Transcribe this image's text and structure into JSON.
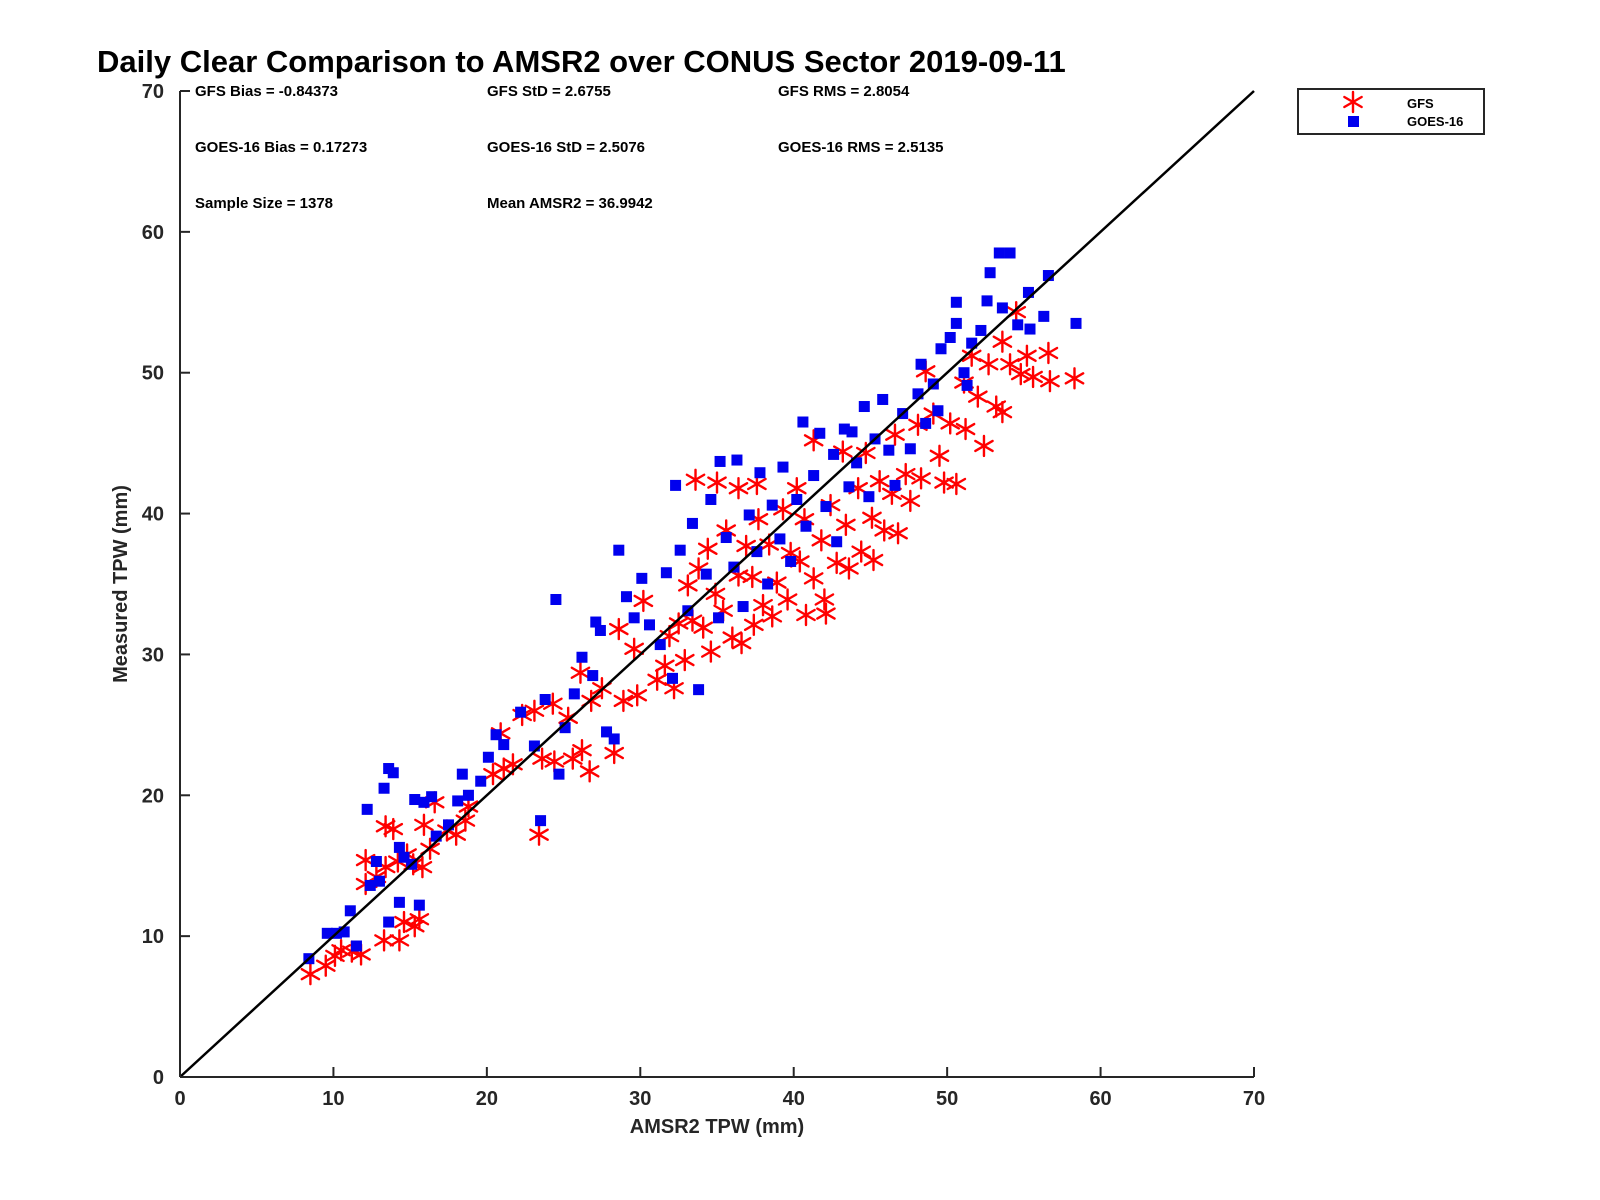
{
  "chart_data": {
    "type": "scatter",
    "title": "Daily Clear Comparison to AMSR2 over CONUS Sector 2019-09-11",
    "xlabel": "AMSR2 TPW (mm)",
    "ylabel": "Measured TPW (mm)",
    "xlim": [
      0,
      70
    ],
    "ylim": [
      0,
      70
    ],
    "xticks": [
      "0",
      "10",
      "20",
      "30",
      "40",
      "50",
      "60",
      "70"
    ],
    "yticks": [
      "0",
      "10",
      "20",
      "30",
      "40",
      "50",
      "60",
      "70"
    ],
    "grid": false,
    "legend_position": "outside-top-right",
    "reference_line": {
      "x": [
        0,
        70
      ],
      "y": [
        0,
        70
      ],
      "color": "#000000"
    },
    "stats": [
      "GFS Bias = -0.84373",
      "GFS StD = 2.6755",
      "GFS RMS = 2.8054",
      "GOES-16 Bias = 0.17273",
      "GOES-16 StD = 2.5076",
      "GOES-16 RMS = 2.5135",
      "Sample Size = 1378",
      "Mean AMSR2 = 36.9942"
    ],
    "series": [
      {
        "name": "GFS",
        "marker": "asterisk",
        "color": "#ff0000",
        "points": [
          [
            8.5,
            7.3
          ],
          [
            9.5,
            7.9
          ],
          [
            10.1,
            8.6
          ],
          [
            10.5,
            9.0
          ],
          [
            11.2,
            8.9
          ],
          [
            11.8,
            8.7
          ],
          [
            13.3,
            9.7
          ],
          [
            14.3,
            9.7
          ],
          [
            14.6,
            11.0
          ],
          [
            15.3,
            10.7
          ],
          [
            15.6,
            11.2
          ],
          [
            12.1,
            13.7
          ],
          [
            12.1,
            15.4
          ],
          [
            12.8,
            14.2
          ],
          [
            13.4,
            14.9
          ],
          [
            13.4,
            17.8
          ],
          [
            13.9,
            17.6
          ],
          [
            14.2,
            15.3
          ],
          [
            14.8,
            15.8
          ],
          [
            15.2,
            15.1
          ],
          [
            15.8,
            14.9
          ],
          [
            15.9,
            17.9
          ],
          [
            16.3,
            16.2
          ],
          [
            16.6,
            19.5
          ],
          [
            17.4,
            17.5
          ],
          [
            18.0,
            17.2
          ],
          [
            18.6,
            18.2
          ],
          [
            18.8,
            19.2
          ],
          [
            20.4,
            21.5
          ],
          [
            20.9,
            24.4
          ],
          [
            21.1,
            21.9
          ],
          [
            21.7,
            22.2
          ],
          [
            22.3,
            25.7
          ],
          [
            23.1,
            26.0
          ],
          [
            23.4,
            17.2
          ],
          [
            23.6,
            22.6
          ],
          [
            24.3,
            26.5
          ],
          [
            24.4,
            22.4
          ],
          [
            25.3,
            25.5
          ],
          [
            25.6,
            22.6
          ],
          [
            26.2,
            23.2
          ],
          [
            26.7,
            21.7
          ],
          [
            26.8,
            26.7
          ],
          [
            26.1,
            28.7
          ],
          [
            27.5,
            27.6
          ],
          [
            28.3,
            23.0
          ],
          [
            28.6,
            31.8
          ],
          [
            28.9,
            26.7
          ],
          [
            29.8,
            27.1
          ],
          [
            29.6,
            30.4
          ],
          [
            30.2,
            33.8
          ],
          [
            31.1,
            28.2
          ],
          [
            31.6,
            29.2
          ],
          [
            31.9,
            31.3
          ],
          [
            32.2,
            27.6
          ],
          [
            32.5,
            32.2
          ],
          [
            32.9,
            29.6
          ],
          [
            33.1,
            34.9
          ],
          [
            33.4,
            32.4
          ],
          [
            33.8,
            36.1
          ],
          [
            33.6,
            42.4
          ],
          [
            34.1,
            31.9
          ],
          [
            34.6,
            30.2
          ],
          [
            34.4,
            37.5
          ],
          [
            34.9,
            34.3
          ],
          [
            35.0,
            42.2
          ],
          [
            35.4,
            33.1
          ],
          [
            35.6,
            38.8
          ],
          [
            36.0,
            31.2
          ],
          [
            36.4,
            35.6
          ],
          [
            36.4,
            41.8
          ],
          [
            36.6,
            30.8
          ],
          [
            36.9,
            37.7
          ],
          [
            37.4,
            32.1
          ],
          [
            37.3,
            35.5
          ],
          [
            37.7,
            39.6
          ],
          [
            37.6,
            42.1
          ],
          [
            38.0,
            33.5
          ],
          [
            38.4,
            37.8
          ],
          [
            38.6,
            32.7
          ],
          [
            38.9,
            35.1
          ],
          [
            39.3,
            40.3
          ],
          [
            39.6,
            33.9
          ],
          [
            39.8,
            37.2
          ],
          [
            40.2,
            41.8
          ],
          [
            40.4,
            36.6
          ],
          [
            40.8,
            32.8
          ],
          [
            40.7,
            39.6
          ],
          [
            41.3,
            35.4
          ],
          [
            41.3,
            45.2
          ],
          [
            41.8,
            38.1
          ],
          [
            42.0,
            33.9
          ],
          [
            42.1,
            32.9
          ],
          [
            42.4,
            40.6
          ],
          [
            42.8,
            36.5
          ],
          [
            43.2,
            44.4
          ],
          [
            43.4,
            39.2
          ],
          [
            43.6,
            36.1
          ],
          [
            44.2,
            41.8
          ],
          [
            44.4,
            37.3
          ],
          [
            44.7,
            44.3
          ],
          [
            45.1,
            39.7
          ],
          [
            45.2,
            36.7
          ],
          [
            45.6,
            42.3
          ],
          [
            45.9,
            38.8
          ],
          [
            46.4,
            41.4
          ],
          [
            46.6,
            45.6
          ],
          [
            46.8,
            38.6
          ],
          [
            47.3,
            42.8
          ],
          [
            47.6,
            40.9
          ],
          [
            48.1,
            46.3
          ],
          [
            48.3,
            42.5
          ],
          [
            48.6,
            50.1
          ],
          [
            49.1,
            47.1
          ],
          [
            49.5,
            44.1
          ],
          [
            49.8,
            42.2
          ],
          [
            50.2,
            46.4
          ],
          [
            50.6,
            42.1
          ],
          [
            51.1,
            49.3
          ],
          [
            51.2,
            46.0
          ],
          [
            51.6,
            51.2
          ],
          [
            52.0,
            48.3
          ],
          [
            52.4,
            44.8
          ],
          [
            52.7,
            50.6
          ],
          [
            53.2,
            47.6
          ],
          [
            53.6,
            52.2
          ],
          [
            54.1,
            50.6
          ],
          [
            54.5,
            54.3
          ],
          [
            55.2,
            51.2
          ],
          [
            55.6,
            49.7
          ],
          [
            56.6,
            51.4
          ],
          [
            56.7,
            49.4
          ],
          [
            58.3,
            49.6
          ],
          [
            54.8,
            49.9
          ],
          [
            53.6,
            47.2
          ]
        ]
      },
      {
        "name": "GOES-16",
        "marker": "square",
        "color": "#0000ee",
        "points": [
          [
            8.4,
            8.4
          ],
          [
            9.6,
            10.2
          ],
          [
            10.2,
            10.2
          ],
          [
            10.7,
            10.3
          ],
          [
            11.1,
            11.8
          ],
          [
            11.5,
            9.3
          ],
          [
            12.2,
            19.0
          ],
          [
            12.4,
            13.6
          ],
          [
            12.8,
            15.3
          ],
          [
            13.0,
            13.9
          ],
          [
            13.3,
            20.5
          ],
          [
            13.6,
            21.9
          ],
          [
            13.6,
            11.0
          ],
          [
            13.9,
            21.6
          ],
          [
            14.3,
            12.4
          ],
          [
            14.3,
            16.3
          ],
          [
            14.6,
            15.6
          ],
          [
            15.1,
            15.1
          ],
          [
            15.3,
            19.7
          ],
          [
            15.6,
            12.2
          ],
          [
            15.9,
            19.5
          ],
          [
            16.4,
            19.9
          ],
          [
            16.7,
            17.1
          ],
          [
            17.5,
            17.9
          ],
          [
            18.1,
            19.6
          ],
          [
            18.4,
            21.5
          ],
          [
            18.8,
            20.0
          ],
          [
            19.6,
            21.0
          ],
          [
            20.1,
            22.7
          ],
          [
            20.6,
            24.3
          ],
          [
            21.1,
            23.6
          ],
          [
            22.2,
            25.9
          ],
          [
            23.5,
            18.2
          ],
          [
            23.1,
            23.5
          ],
          [
            23.8,
            26.8
          ],
          [
            24.5,
            33.9
          ],
          [
            24.7,
            21.5
          ],
          [
            25.1,
            24.8
          ],
          [
            25.7,
            27.2
          ],
          [
            26.2,
            29.8
          ],
          [
            26.9,
            28.5
          ],
          [
            27.1,
            32.3
          ],
          [
            27.4,
            31.7
          ],
          [
            27.8,
            24.5
          ],
          [
            28.3,
            24.0
          ],
          [
            28.6,
            37.4
          ],
          [
            29.1,
            34.1
          ],
          [
            29.6,
            32.6
          ],
          [
            30.1,
            35.4
          ],
          [
            30.6,
            32.1
          ],
          [
            31.3,
            30.7
          ],
          [
            31.7,
            35.8
          ],
          [
            32.1,
            28.3
          ],
          [
            32.3,
            42.0
          ],
          [
            32.6,
            37.4
          ],
          [
            33.1,
            33.1
          ],
          [
            33.4,
            39.3
          ],
          [
            33.8,
            27.5
          ],
          [
            34.3,
            35.7
          ],
          [
            34.6,
            41.0
          ],
          [
            35.1,
            32.6
          ],
          [
            35.2,
            43.7
          ],
          [
            35.6,
            38.3
          ],
          [
            36.1,
            36.2
          ],
          [
            36.3,
            43.8
          ],
          [
            36.7,
            33.4
          ],
          [
            37.1,
            39.9
          ],
          [
            37.6,
            37.3
          ],
          [
            37.8,
            42.9
          ],
          [
            38.3,
            35.0
          ],
          [
            38.6,
            40.6
          ],
          [
            39.1,
            38.2
          ],
          [
            39.3,
            43.3
          ],
          [
            39.8,
            36.6
          ],
          [
            40.2,
            41.0
          ],
          [
            40.6,
            46.5
          ],
          [
            40.8,
            39.1
          ],
          [
            41.3,
            42.7
          ],
          [
            41.7,
            45.7
          ],
          [
            42.1,
            40.5
          ],
          [
            42.6,
            44.2
          ],
          [
            42.8,
            38.0
          ],
          [
            43.3,
            46.0
          ],
          [
            43.6,
            41.9
          ],
          [
            44.1,
            43.6
          ],
          [
            44.6,
            47.6
          ],
          [
            44.9,
            41.2
          ],
          [
            45.3,
            45.3
          ],
          [
            45.8,
            48.1
          ],
          [
            46.2,
            44.5
          ],
          [
            46.6,
            42.0
          ],
          [
            47.1,
            47.1
          ],
          [
            47.6,
            44.6
          ],
          [
            48.1,
            48.5
          ],
          [
            48.6,
            46.4
          ],
          [
            49.1,
            49.2
          ],
          [
            49.6,
            51.7
          ],
          [
            49.4,
            47.3
          ],
          [
            50.2,
            52.5
          ],
          [
            50.6,
            55.0
          ],
          [
            50.6,
            53.5
          ],
          [
            51.1,
            50.0
          ],
          [
            51.6,
            52.1
          ],
          [
            52.2,
            53.0
          ],
          [
            52.6,
            55.1
          ],
          [
            52.8,
            57.1
          ],
          [
            53.4,
            58.5
          ],
          [
            53.6,
            54.6
          ],
          [
            54.1,
            58.5
          ],
          [
            54.6,
            53.4
          ],
          [
            55.4,
            53.1
          ],
          [
            55.3,
            55.7
          ],
          [
            56.3,
            54.0
          ],
          [
            56.6,
            56.9
          ],
          [
            58.4,
            53.5
          ],
          [
            51.3,
            49.1
          ],
          [
            48.3,
            50.6
          ],
          [
            43.8,
            45.8
          ]
        ]
      }
    ]
  }
}
